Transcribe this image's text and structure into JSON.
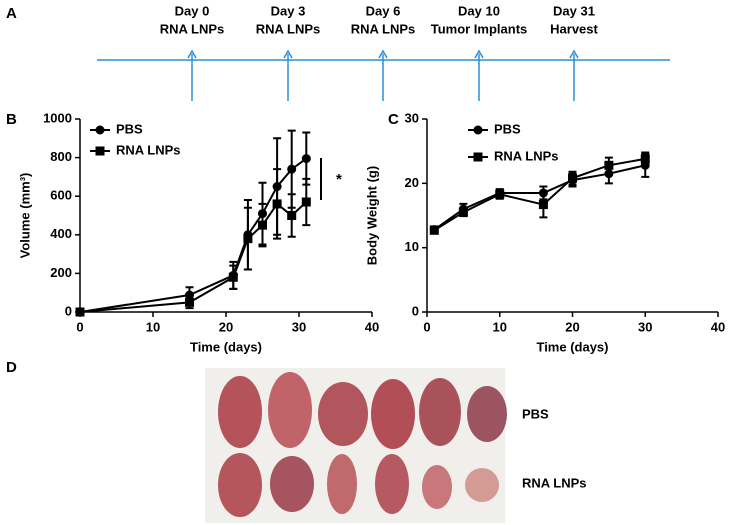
{
  "panels": [
    "A",
    "B",
    "C",
    "D"
  ],
  "timeline": {
    "events": [
      {
        "day": "Day 0",
        "label": "RNA LNPs"
      },
      {
        "day": "Day 3",
        "label": "RNA LNPs"
      },
      {
        "day": "Day 6",
        "label": "RNA LNPs"
      },
      {
        "day": "Day 10",
        "label": "Tumor Implants"
      },
      {
        "day": "Day 31",
        "label": "Harvest"
      }
    ]
  },
  "chart_data": [
    {
      "type": "line",
      "xlabel": "Time (days)",
      "ylabel": "Volume (mm³)",
      "annotation": "*",
      "x": [
        0,
        15,
        21,
        23,
        25,
        27,
        29,
        31
      ],
      "series": [
        {
          "name": "PBS",
          "color": "#000000",
          "marker": "circle",
          "values": [
            0,
            88,
            190,
            400,
            510,
            650,
            740,
            795
          ],
          "errors": [
            0,
            40,
            70,
            180,
            160,
            250,
            200,
            135
          ]
        },
        {
          "name": "RNA LNPs",
          "color": "#000000",
          "marker": "square",
          "values": [
            0,
            50,
            180,
            380,
            450,
            560,
            500,
            570
          ],
          "errors": [
            0,
            30,
            60,
            160,
            110,
            180,
            110,
            120
          ]
        }
      ],
      "xlim": [
        0,
        40
      ],
      "xticks": [
        0,
        10,
        20,
        30,
        40
      ],
      "ylim": [
        0,
        1000
      ],
      "yticks": [
        0,
        200,
        400,
        600,
        800,
        1000
      ]
    },
    {
      "type": "line",
      "xlabel": "Time (days)",
      "ylabel": "Body Weight (g)",
      "x": [
        1,
        5,
        10,
        16,
        20,
        25,
        30
      ],
      "series": [
        {
          "name": "PBS",
          "color": "#000000",
          "marker": "circle",
          "values": [
            12.8,
            16,
            18.5,
            18.5,
            20.5,
            21.5,
            22.8
          ],
          "errors": [
            0.5,
            0.8,
            0.6,
            1,
            1,
            1.5,
            1.8
          ]
        },
        {
          "name": "RNA LNPs",
          "color": "#000000",
          "marker": "square",
          "values": [
            12.7,
            15.5,
            18.3,
            16.7,
            20.8,
            22.8,
            23.8
          ],
          "errors": [
            0.5,
            0.6,
            0.7,
            2,
            1,
            1.2,
            1
          ]
        }
      ],
      "xlim": [
        0,
        40
      ],
      "xticks": [
        0,
        10,
        20,
        30,
        40
      ],
      "ylim": [
        0,
        30
      ],
      "yticks": [
        0,
        10,
        20,
        30
      ]
    }
  ],
  "photo": {
    "row_labels": [
      "PBS",
      "RNA LNPs"
    ]
  }
}
